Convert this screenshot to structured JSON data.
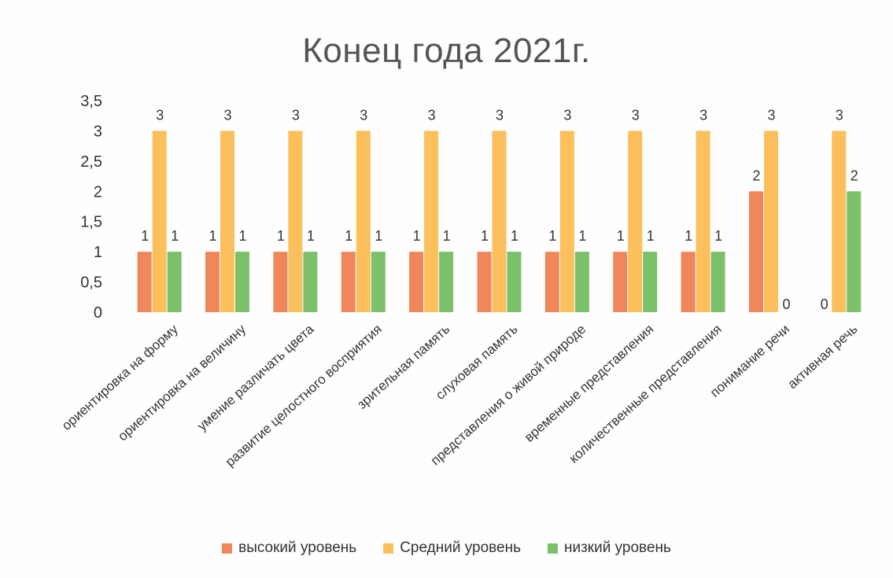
{
  "chart_data": {
    "type": "bar",
    "title": "Конец года 2021г.",
    "categories": [
      "ориентировка на форму",
      "ориентировка на величину",
      "умение различать цвета",
      "развитие целостного восприятия",
      "зрительная память",
      "слуховая память",
      "представления о живой природе",
      "временные представления",
      "количественные представления",
      "понимание речи",
      "активная речь"
    ],
    "series": [
      {
        "name": "высокий уровень",
        "color": "#f0875a",
        "values": [
          1,
          1,
          1,
          1,
          1,
          1,
          1,
          1,
          1,
          2,
          0
        ]
      },
      {
        "name": "Средний уровень",
        "color": "#fbbf5c",
        "values": [
          3,
          3,
          3,
          3,
          3,
          3,
          3,
          3,
          3,
          3,
          3
        ]
      },
      {
        "name": "низкий уровень",
        "color": "#7cc16a",
        "values": [
          1,
          1,
          1,
          1,
          1,
          1,
          1,
          1,
          1,
          0,
          2
        ]
      }
    ],
    "data_labels": [
      [
        "1",
        "1",
        "1",
        "1",
        "1",
        "1",
        "1",
        "1",
        "1",
        "2",
        "0"
      ],
      [
        "3",
        "3",
        "3",
        "3",
        "3",
        "3",
        "3",
        "3",
        "3",
        "3",
        "3"
      ],
      [
        "1",
        "1",
        "1",
        "1",
        "1",
        "1",
        "1",
        "1",
        "1",
        "0",
        "2"
      ]
    ],
    "ylim": [
      0,
      3.5
    ],
    "yticks": [
      0,
      0.5,
      1,
      1.5,
      2,
      2.5,
      3,
      3.5
    ],
    "ytick_labels": [
      "0",
      "0,5",
      "1",
      "1,5",
      "2",
      "2,5",
      "3",
      "3,5"
    ],
    "grid": false,
    "legend_position": "bottom",
    "xlabel": "",
    "ylabel": ""
  }
}
